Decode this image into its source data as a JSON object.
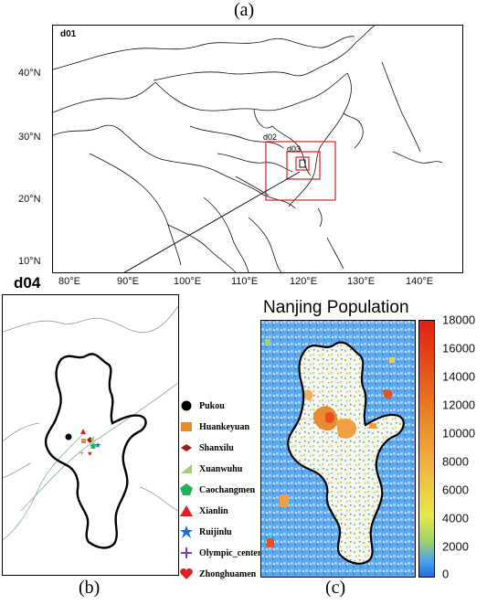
{
  "panel_a": {
    "label": "(a)",
    "domain_labels": [
      "d01",
      "d02",
      "d03",
      "d04"
    ],
    "lat_ticks": [
      "40°N",
      "30°N",
      "20°N",
      "10°N"
    ],
    "lon_ticks": [
      "80°E",
      "90°E",
      "100°E",
      "110°E",
      "120°E",
      "130°E",
      "140°E"
    ]
  },
  "panel_b": {
    "label": "(b)",
    "title": "d04",
    "legend": [
      {
        "name": "Pukou",
        "marker": "circle",
        "color": "#000000"
      },
      {
        "name": "Huankeyuan",
        "marker": "square",
        "color": "#e88a2e"
      },
      {
        "name": "Shanxilu",
        "marker": "diamond",
        "color": "#9b1b1b"
      },
      {
        "name": "Xuanwuhu",
        "marker": "triangle-left",
        "color": "#9fd26a"
      },
      {
        "name": "Caochangmen",
        "marker": "pentagon",
        "color": "#22b35a"
      },
      {
        "name": "Xianlin",
        "marker": "triangle-up",
        "color": "#e02020"
      },
      {
        "name": "Ruijinlu",
        "marker": "star",
        "color": "#1f6fd1"
      },
      {
        "name": "Olympic_center",
        "marker": "plus",
        "color": "#7a3fb3"
      },
      {
        "name": "Zhonghuamen",
        "marker": "heart",
        "color": "#e02020"
      }
    ]
  },
  "panel_c": {
    "label": "(c)",
    "title": "Nanjing Population",
    "colorbar_ticks": [
      "18000",
      "16000",
      "14000",
      "12000",
      "10000",
      "8000",
      "6000",
      "4000",
      "2000",
      "0"
    ],
    "colorbar_range": [
      0,
      18000
    ],
    "colors": {
      "low": "#1e6fe0",
      "mid": "#f2f2a0",
      "high": "#e02010"
    }
  }
}
